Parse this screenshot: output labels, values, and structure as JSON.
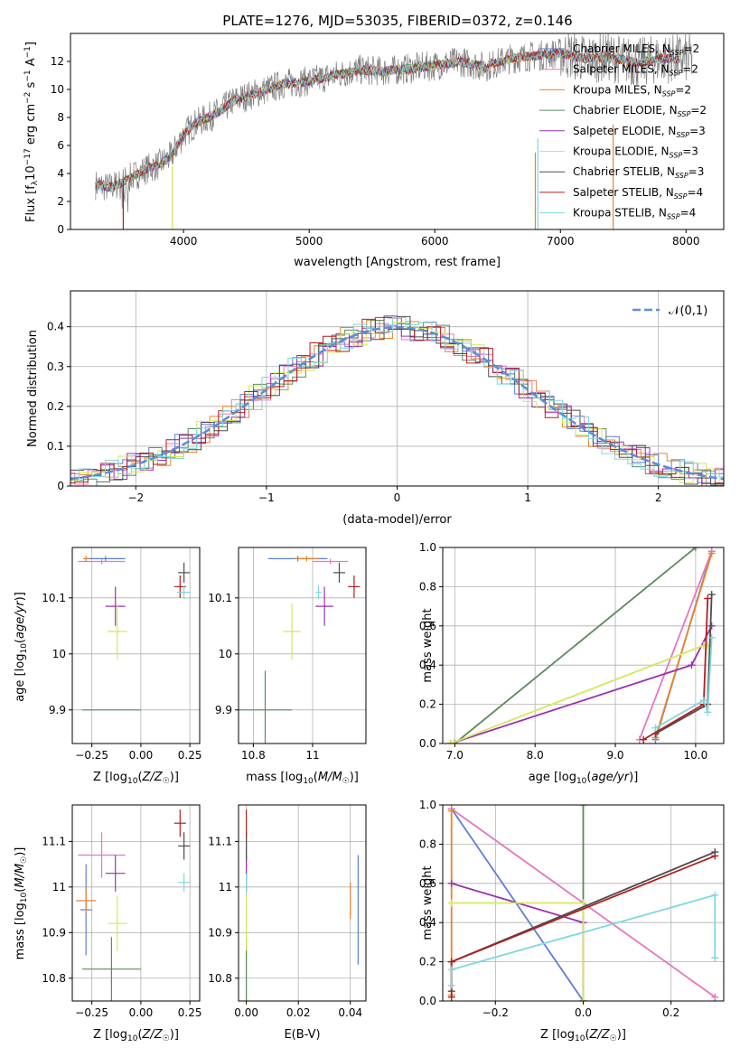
{
  "figure": {
    "title": "PLATE=1276, MJD=53035, FIBERID=0372, z=0.146"
  },
  "colors": {
    "Chabrier MILES": "#5b7fd6",
    "Salpeter MILES": "#e377c2",
    "Kroupa MILES": "#e8842a",
    "Chabrier ELODIE": "#5a8a5e",
    "Salpeter ELODIE": "#9b30b0",
    "Kroupa ELODIE": "#d4e85a",
    "Chabrier STELIB": "#4d4d4d",
    "Salpeter STELIB": "#b21f1f",
    "Kroupa STELIB": "#7fd7df",
    "data": "#7f7f7f",
    "normal": "#5b8fd9"
  },
  "chart_data": [
    {
      "type": "line",
      "id": "spectrum",
      "xlabel": "wavelength [Angstrom, rest frame]",
      "ylabel": "Flux [f_λ10^-17 erg cm^-2 s^-1 A^-1]",
      "xlim": [
        3100,
        8300
      ],
      "ylim": [
        0,
        14
      ],
      "xticks": [
        4000,
        5000,
        6000,
        7000,
        8000
      ],
      "yticks": [
        0,
        2,
        4,
        6,
        8,
        10,
        12
      ],
      "legend_position": "top-right",
      "grid": false,
      "data_profile": {
        "wavelength": [
          3300,
          3400,
          3500,
          3600,
          3700,
          3800,
          3900,
          4000,
          4100,
          4200,
          4300,
          4400,
          4600,
          4800,
          5000,
          5200,
          5400,
          5600,
          5800,
          6000,
          6200,
          6400,
          6600,
          6800,
          7000,
          7200,
          7400,
          7600,
          7800
        ],
        "flux": [
          3.2,
          3.0,
          3.3,
          3.8,
          4.3,
          4.6,
          5.2,
          6.8,
          7.6,
          8.0,
          8.5,
          9.2,
          9.8,
          10.4,
          10.6,
          11.0,
          11.4,
          11.3,
          11.5,
          11.7,
          12.0,
          11.6,
          12.2,
          12.4,
          12.6,
          12.2,
          12.3,
          11.9,
          12.2
        ]
      },
      "series": [
        {
          "name": "Chabrier MILES",
          "n_ssp": "2"
        },
        {
          "name": "Salpeter MILES",
          "n_ssp": "2"
        },
        {
          "name": "Kroupa MILES",
          "n_ssp": "2"
        },
        {
          "name": "Chabrier ELODIE",
          "n_ssp": "2"
        },
        {
          "name": "Salpeter ELODIE",
          "n_ssp": "3"
        },
        {
          "name": "Kroupa ELODIE",
          "n_ssp": "3"
        },
        {
          "name": "Chabrier STELIB",
          "n_ssp": "3"
        },
        {
          "name": "Salpeter STELIB",
          "n_ssp": "4"
        },
        {
          "name": "Kroupa STELIB",
          "n_ssp": "4"
        }
      ]
    },
    {
      "type": "line",
      "id": "residuals",
      "xlabel": "(data-model)/error",
      "ylabel": "Normed distribution",
      "xlim": [
        -2.5,
        2.5
      ],
      "ylim": [
        0,
        0.49
      ],
      "xticks": [
        -2,
        -1,
        0,
        1,
        2
      ],
      "yticks": [
        0.0,
        0.1,
        0.2,
        0.3,
        0.4
      ],
      "grid": true,
      "legend_position": "top-right",
      "legend": "𝒩(0,1)"
    },
    {
      "type": "scatter",
      "id": "age_vs_Z",
      "xlabel": "Z [log10(Z/Z☉)]",
      "ylabel": "age [log10(age/yr)]",
      "xlim": [
        -0.35,
        0.3
      ],
      "ylim": [
        9.84,
        10.19
      ],
      "xticks": [
        -0.25,
        0.0,
        0.25
      ],
      "yticks": [
        9.9,
        10.0,
        10.1
      ],
      "grid": true,
      "points": [
        {
          "series": "Chabrier MILES",
          "x": -0.18,
          "y": 10.17,
          "xerr": 0.1,
          "yerr": 0.005
        },
        {
          "series": "Salpeter MILES",
          "x": -0.2,
          "y": 10.165,
          "xerr": 0.12,
          "yerr": 0.005
        },
        {
          "series": "Kroupa MILES",
          "x": -0.28,
          "y": 10.17,
          "xerr": 0.015,
          "yerr": 0.005
        },
        {
          "series": "Chabrier ELODIE",
          "x": -0.15,
          "y": 9.9,
          "xerr": 0.15,
          "yerr": 0.0
        },
        {
          "series": "Salpeter ELODIE",
          "x": -0.13,
          "y": 10.085,
          "xerr": 0.05,
          "yerr": 0.035
        },
        {
          "series": "Kroupa ELODIE",
          "x": -0.12,
          "y": 10.04,
          "xerr": 0.05,
          "yerr": 0.05
        },
        {
          "series": "Chabrier STELIB",
          "x": 0.22,
          "y": 10.145,
          "xerr": 0.03,
          "yerr": 0.018
        },
        {
          "series": "Salpeter STELIB",
          "x": 0.2,
          "y": 10.12,
          "xerr": 0.03,
          "yerr": 0.02
        },
        {
          "series": "Kroupa STELIB",
          "x": 0.22,
          "y": 10.11,
          "xerr": 0.035,
          "yerr": 0.012
        }
      ]
    },
    {
      "type": "scatter",
      "id": "age_vs_mass",
      "xlabel": "mass [log10(M/M☉)]",
      "ylabel": "",
      "xlim": [
        10.75,
        11.18
      ],
      "ylim": [
        9.84,
        10.19
      ],
      "xticks": [
        10.8,
        11.0
      ],
      "yticks": [
        9.9,
        10.0,
        10.1
      ],
      "grid": true,
      "points": [
        {
          "series": "Chabrier MILES",
          "x": 10.95,
          "y": 10.17,
          "xerr": 0.1,
          "yerr": 0.005
        },
        {
          "series": "Salpeter MILES",
          "x": 11.06,
          "y": 10.165,
          "xerr": 0.06,
          "yerr": 0.005
        },
        {
          "series": "Kroupa MILES",
          "x": 10.98,
          "y": 10.17,
          "xerr": 0.04,
          "yerr": 0.005
        },
        {
          "series": "Chabrier ELODIE",
          "x": 10.84,
          "y": 9.9,
          "xerr": 0.09,
          "yerr": 0.07
        },
        {
          "series": "Salpeter ELODIE",
          "x": 11.04,
          "y": 10.085,
          "xerr": 0.03,
          "yerr": 0.035
        },
        {
          "series": "Kroupa ELODIE",
          "x": 10.93,
          "y": 10.04,
          "xerr": 0.03,
          "yerr": 0.05
        },
        {
          "series": "Chabrier STELIB",
          "x": 11.09,
          "y": 10.145,
          "xerr": 0.02,
          "yerr": 0.018
        },
        {
          "series": "Salpeter STELIB",
          "x": 11.14,
          "y": 10.12,
          "xerr": 0.02,
          "yerr": 0.02
        },
        {
          "series": "Kroupa STELIB",
          "x": 11.02,
          "y": 10.11,
          "xerr": 0.01,
          "yerr": 0.012
        }
      ]
    },
    {
      "type": "line",
      "id": "weight_vs_age",
      "xlabel": "age [log10(age/yr)]",
      "ylabel": "mass weight",
      "xlim": [
        6.85,
        10.35
      ],
      "ylim": [
        0,
        1
      ],
      "xticks": [
        7,
        8,
        9,
        10
      ],
      "yticks": [
        0.0,
        0.2,
        0.4,
        0.6,
        0.8,
        1.0
      ],
      "grid": true,
      "series": [
        {
          "name": "Chabrier MILES",
          "x": [
            9.5,
            10.2
          ],
          "y": [
            0.02,
            0.98
          ]
        },
        {
          "name": "Salpeter MILES",
          "x": [
            9.3,
            10.2
          ],
          "y": [
            0.02,
            0.98
          ]
        },
        {
          "name": "Kroupa MILES",
          "x": [
            9.5,
            10.2
          ],
          "y": [
            0.03,
            0.97
          ]
        },
        {
          "name": "Chabrier ELODIE",
          "x": [
            7.0,
            10.0
          ],
          "y": [
            0.0,
            1.0
          ]
        },
        {
          "name": "Salpeter ELODIE",
          "x": [
            6.95,
            9.95,
            10.2
          ],
          "y": [
            0.0,
            0.4,
            0.6
          ]
        },
        {
          "name": "Kroupa ELODIE",
          "x": [
            6.95,
            10.1,
            10.15
          ],
          "y": [
            0.0,
            0.5,
            0.5
          ]
        },
        {
          "name": "Chabrier STELIB",
          "x": [
            9.5,
            10.15,
            10.2
          ],
          "y": [
            0.05,
            0.2,
            0.76
          ]
        },
        {
          "name": "Salpeter STELIB",
          "x": [
            9.35,
            10.1,
            10.15
          ],
          "y": [
            0.02,
            0.2,
            0.74
          ]
        },
        {
          "name": "Kroupa STELIB",
          "x": [
            9.5,
            10.1,
            10.15,
            10.2
          ],
          "y": [
            0.08,
            0.22,
            0.16,
            0.54
          ]
        }
      ]
    },
    {
      "type": "scatter",
      "id": "mass_vs_Z",
      "xlabel": "Z [log10(Z/Z☉)]",
      "ylabel": "mass [log10(M/M☉)]",
      "xlim": [
        -0.35,
        0.3
      ],
      "ylim": [
        10.75,
        11.18
      ],
      "xticks": [
        -0.25,
        0.0,
        0.25
      ],
      "yticks": [
        10.8,
        10.9,
        11.0,
        11.1
      ],
      "grid": true,
      "points": [
        {
          "series": "Chabrier MILES",
          "x": -0.28,
          "y": 10.95,
          "xerr": 0.03,
          "yerr": 0.1
        },
        {
          "series": "Salpeter MILES",
          "x": -0.2,
          "y": 11.07,
          "xerr": 0.12,
          "yerr": 0.05
        },
        {
          "series": "Kroupa MILES",
          "x": -0.28,
          "y": 10.97,
          "xerr": 0.05,
          "yerr": 0.03
        },
        {
          "series": "Chabrier ELODIE",
          "x": -0.15,
          "y": 10.82,
          "xerr": 0.15,
          "yerr": 0.07
        },
        {
          "series": "Salpeter ELODIE",
          "x": -0.13,
          "y": 11.03,
          "xerr": 0.05,
          "yerr": 0.04
        },
        {
          "series": "Kroupa ELODIE",
          "x": -0.12,
          "y": 10.92,
          "xerr": 0.05,
          "yerr": 0.06
        },
        {
          "series": "Chabrier STELIB",
          "x": 0.22,
          "y": 11.09,
          "xerr": 0.03,
          "yerr": 0.03
        },
        {
          "series": "Salpeter STELIB",
          "x": 0.2,
          "y": 11.14,
          "xerr": 0.03,
          "yerr": 0.03
        },
        {
          "series": "Kroupa STELIB",
          "x": 0.22,
          "y": 11.01,
          "xerr": 0.03,
          "yerr": 0.02
        }
      ]
    },
    {
      "type": "scatter",
      "id": "mass_vs_ebv",
      "xlabel": "E(B-V)",
      "ylabel": "",
      "xlim": [
        -0.003,
        0.046
      ],
      "ylim": [
        10.75,
        11.18
      ],
      "xticks": [
        0.0,
        0.02,
        0.04
      ],
      "yticks": [
        10.8,
        10.9,
        11.0,
        11.1
      ],
      "grid": true,
      "points": [
        {
          "series": "Chabrier MILES",
          "x": 0.043,
          "y": 10.95,
          "xerr": 0,
          "yerr": 0.12
        },
        {
          "series": "Salpeter MILES",
          "x": 0.0,
          "y": 11.07,
          "xerr": 0,
          "yerr": 0.05
        },
        {
          "series": "Kroupa MILES",
          "x": 0.04,
          "y": 10.97,
          "xerr": 0,
          "yerr": 0.04
        },
        {
          "series": "Chabrier ELODIE",
          "x": 0.0,
          "y": 10.82,
          "xerr": 0,
          "yerr": 0.07
        },
        {
          "series": "Salpeter ELODIE",
          "x": 0.0,
          "y": 11.03,
          "xerr": 0,
          "yerr": 0.04
        },
        {
          "series": "Kroupa ELODIE",
          "x": 0.0,
          "y": 10.92,
          "xerr": 0,
          "yerr": 0.06
        },
        {
          "series": "Chabrier STELIB",
          "x": 0.0,
          "y": 11.09,
          "xerr": 0,
          "yerr": 0.03
        },
        {
          "series": "Salpeter STELIB",
          "x": 0.0,
          "y": 11.14,
          "xerr": 0,
          "yerr": 0.03
        },
        {
          "series": "Kroupa STELIB",
          "x": 0.0,
          "y": 11.01,
          "xerr": 0,
          "yerr": 0.02
        }
      ]
    },
    {
      "type": "line",
      "id": "weight_vs_Z",
      "xlabel": "Z [log10(Z/Z☉)]",
      "ylabel": "mass weight",
      "xlim": [
        -0.32,
        0.32
      ],
      "ylim": [
        0,
        1
      ],
      "xticks": [
        -0.2,
        0.0,
        0.2
      ],
      "yticks": [
        0.0,
        0.2,
        0.4,
        0.6,
        0.8,
        1.0
      ],
      "grid": true,
      "series": [
        {
          "name": "Chabrier MILES",
          "x": [
            -0.3,
            0.0
          ],
          "y": [
            0.98,
            0.0
          ]
        },
        {
          "name": "Salpeter MILES",
          "x": [
            -0.3,
            0.3
          ],
          "y": [
            0.98,
            0.02
          ]
        },
        {
          "name": "Kroupa MILES",
          "x": [
            -0.3,
            -0.3
          ],
          "y": [
            0.97,
            0.03
          ]
        },
        {
          "name": "Chabrier ELODIE",
          "x": [
            0.0,
            0.0
          ],
          "y": [
            0.0,
            1.0
          ]
        },
        {
          "name": "Salpeter ELODIE",
          "x": [
            -0.3,
            0.0,
            0.0
          ],
          "y": [
            0.6,
            0.4,
            0.0
          ]
        },
        {
          "name": "Kroupa ELODIE",
          "x": [
            -0.3,
            0.0,
            0.0
          ],
          "y": [
            0.5,
            0.5,
            0.0
          ]
        },
        {
          "name": "Chabrier STELIB",
          "x": [
            -0.3,
            -0.3,
            0.3
          ],
          "y": [
            0.05,
            0.2,
            0.76
          ]
        },
        {
          "name": "Salpeter STELIB",
          "x": [
            -0.3,
            -0.3,
            0.3
          ],
          "y": [
            0.02,
            0.2,
            0.74
          ]
        },
        {
          "name": "Kroupa STELIB",
          "x": [
            -0.3,
            -0.3,
            0.3,
            0.3
          ],
          "y": [
            0.08,
            0.16,
            0.54,
            0.22
          ]
        }
      ]
    }
  ]
}
